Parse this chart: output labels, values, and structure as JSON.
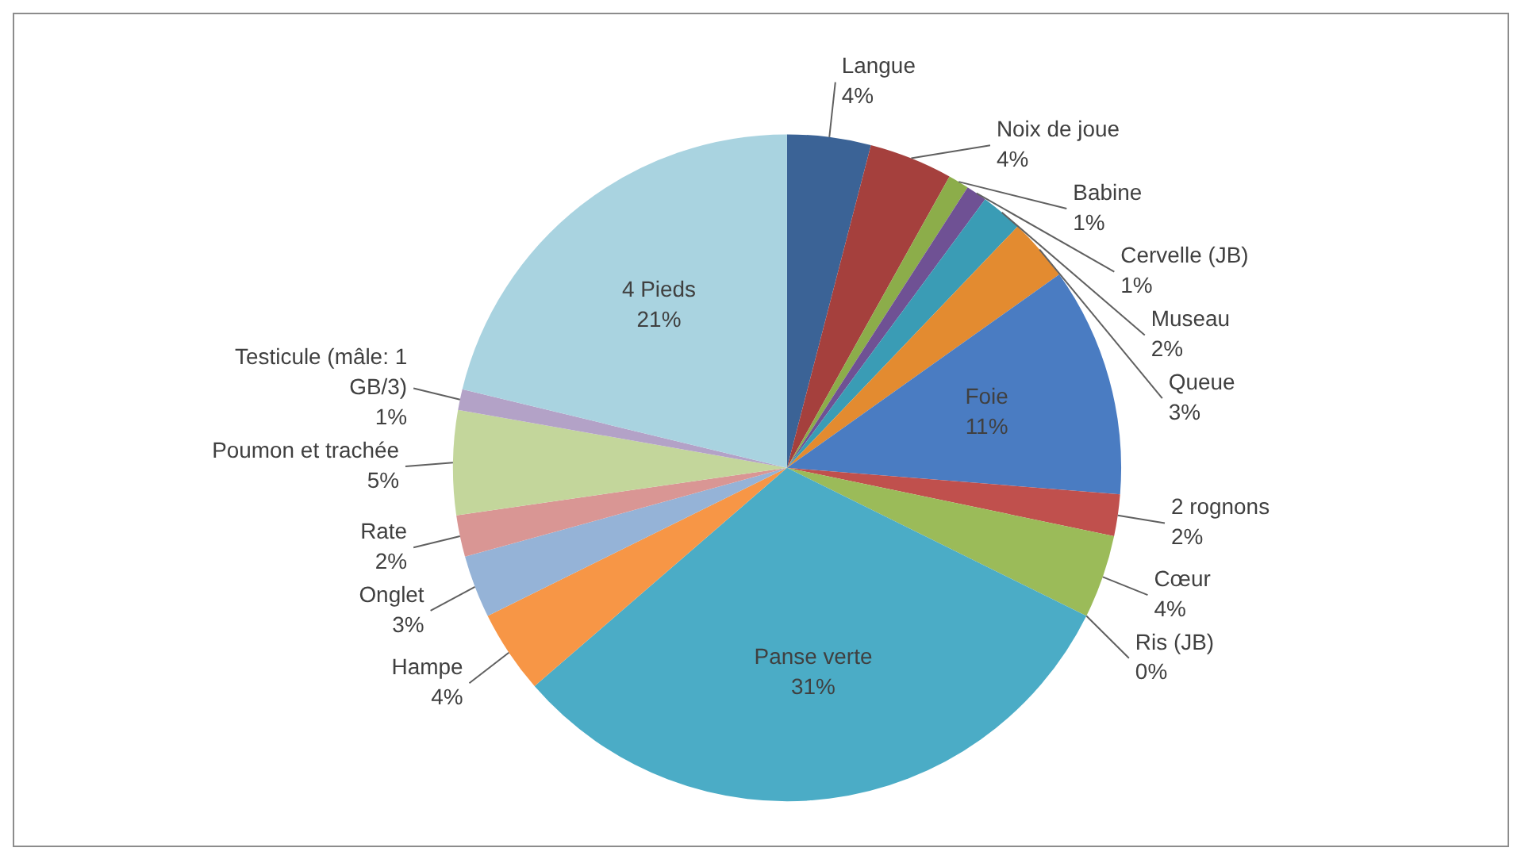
{
  "chart_data": {
    "type": "pie",
    "categories": [
      "Langue",
      "Noix de joue",
      "Babine",
      "Cervelle (JB)",
      "Museau",
      "Queue",
      "Foie",
      "2 rognons",
      "Cœur",
      "Ris (JB)",
      "Panse verte",
      "Hampe",
      "Onglet",
      "Rate",
      "Poumon et trachée",
      "Testicule (mâle: 1 GB/3)",
      "4 Pieds"
    ],
    "values": [
      4,
      4,
      1,
      1,
      2,
      3,
      11,
      2,
      4,
      0,
      31,
      4,
      3,
      2,
      5,
      1,
      21
    ],
    "value_labels": [
      "4%",
      "4%",
      "1%",
      "1%",
      "2%",
      "3%",
      "11%",
      "2%",
      "4%",
      "0%",
      "31%",
      "4%",
      "3%",
      "2%",
      "5%",
      "1%",
      "21%"
    ],
    "colors": [
      "#3b6396",
      "#a5403d",
      "#8cad4a",
      "#6f5194",
      "#3a9cb5",
      "#e38b30",
      "#4a7cc2",
      "#c0504d",
      "#9bbb59",
      "#7f62a0",
      "#4bacc6",
      "#f79646",
      "#95b3d7",
      "#d99694",
      "#c3d69b",
      "#b3a2c7",
      "#a9d3e0"
    ]
  }
}
